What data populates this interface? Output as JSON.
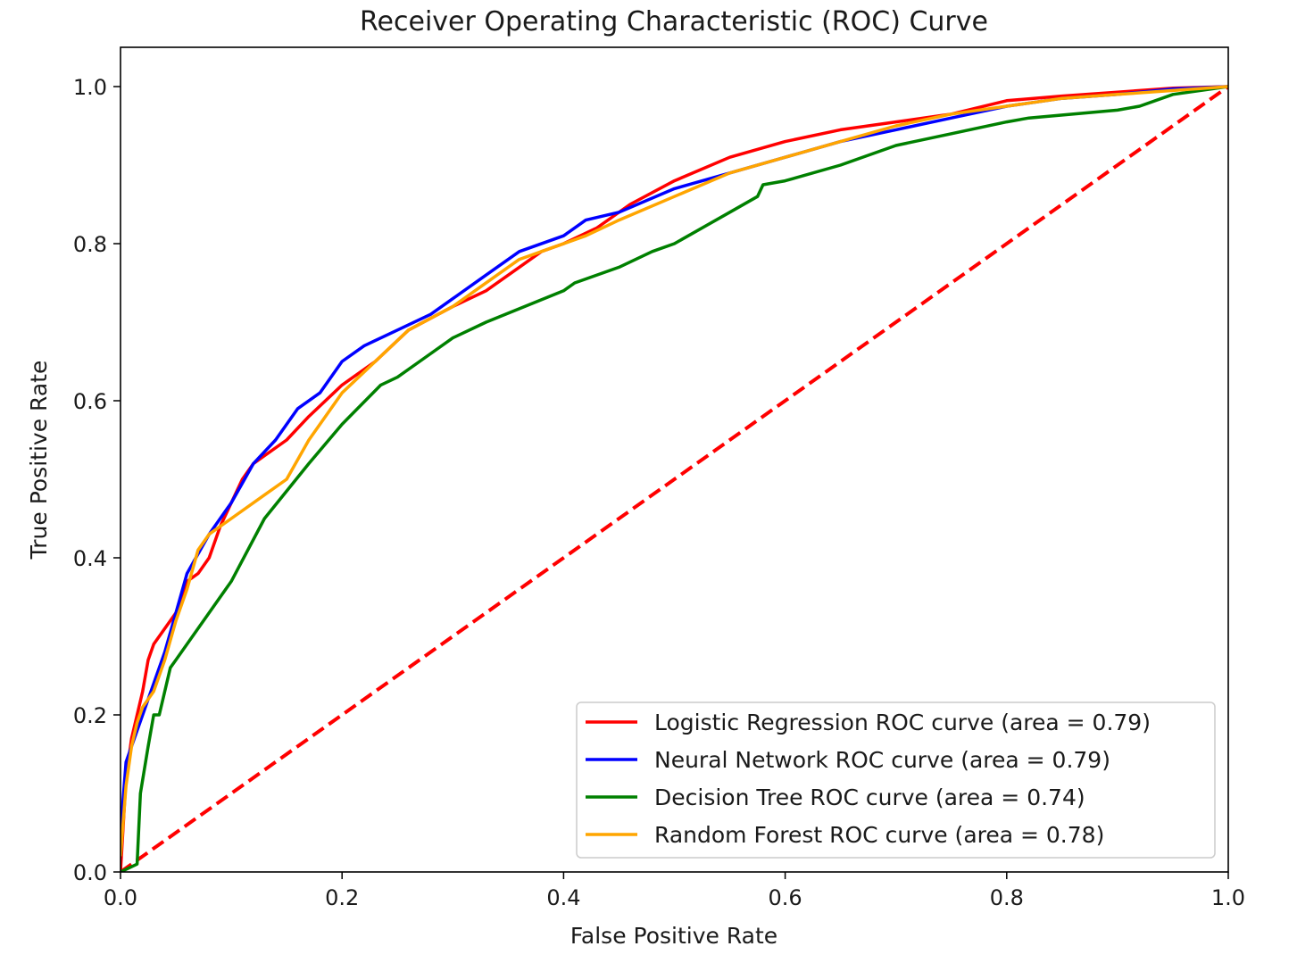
{
  "chart_data": {
    "type": "line",
    "title": "Receiver Operating Characteristic (ROC) Curve",
    "xlabel": "False Positive Rate",
    "ylabel": "True Positive Rate",
    "xlim": [
      0.0,
      1.0
    ],
    "ylim": [
      0.0,
      1.05
    ],
    "xticks": [
      0.0,
      0.2,
      0.4,
      0.6,
      0.8,
      1.0
    ],
    "yticks": [
      0.0,
      0.2,
      0.4,
      0.6,
      0.8,
      1.0
    ],
    "xtick_labels": [
      "0.0",
      "0.2",
      "0.4",
      "0.6",
      "0.8",
      "1.0"
    ],
    "ytick_labels": [
      "0.0",
      "0.2",
      "0.4",
      "0.6",
      "0.8",
      "1.0"
    ],
    "grid": false,
    "legend_position": "lower right",
    "series": [
      {
        "name": "Logistic Regression ROC curve (area = 0.79)",
        "color": "#ff0000",
        "x": [
          0.0,
          0.005,
          0.01,
          0.02,
          0.025,
          0.03,
          0.04,
          0.05,
          0.06,
          0.07,
          0.08,
          0.09,
          0.1,
          0.11,
          0.12,
          0.13,
          0.15,
          0.17,
          0.2,
          0.23,
          0.26,
          0.3,
          0.33,
          0.36,
          0.38,
          0.4,
          0.43,
          0.46,
          0.5,
          0.55,
          0.6,
          0.65,
          0.7,
          0.75,
          0.8,
          0.85,
          0.9,
          0.95,
          1.0
        ],
        "y": [
          0.0,
          0.12,
          0.17,
          0.23,
          0.27,
          0.29,
          0.31,
          0.33,
          0.37,
          0.38,
          0.4,
          0.44,
          0.47,
          0.5,
          0.52,
          0.53,
          0.55,
          0.58,
          0.62,
          0.65,
          0.69,
          0.72,
          0.74,
          0.77,
          0.79,
          0.8,
          0.82,
          0.85,
          0.88,
          0.91,
          0.93,
          0.945,
          0.955,
          0.965,
          0.982,
          0.988,
          0.993,
          0.998,
          1.0
        ]
      },
      {
        "name": "Neural Network ROC curve (area = 0.79)",
        "color": "#0000ff",
        "x": [
          0.0,
          0.005,
          0.01,
          0.02,
          0.03,
          0.04,
          0.05,
          0.06,
          0.08,
          0.1,
          0.12,
          0.14,
          0.16,
          0.18,
          0.2,
          0.22,
          0.25,
          0.28,
          0.3,
          0.33,
          0.36,
          0.4,
          0.42,
          0.45,
          0.5,
          0.55,
          0.6,
          0.65,
          0.7,
          0.75,
          0.8,
          0.85,
          0.9,
          0.95,
          1.0
        ],
        "y": [
          0.05,
          0.14,
          0.16,
          0.2,
          0.24,
          0.28,
          0.33,
          0.38,
          0.43,
          0.47,
          0.52,
          0.55,
          0.59,
          0.61,
          0.65,
          0.67,
          0.69,
          0.71,
          0.73,
          0.76,
          0.79,
          0.81,
          0.83,
          0.84,
          0.87,
          0.89,
          0.91,
          0.93,
          0.945,
          0.96,
          0.975,
          0.985,
          0.99,
          0.997,
          1.0
        ]
      },
      {
        "name": "Decision Tree ROC curve (area = 0.74)",
        "color": "#008000",
        "x": [
          0.0,
          0.015,
          0.018,
          0.025,
          0.03,
          0.035,
          0.04,
          0.045,
          0.05,
          0.1,
          0.13,
          0.17,
          0.2,
          0.235,
          0.25,
          0.27,
          0.3,
          0.33,
          0.4,
          0.41,
          0.45,
          0.48,
          0.5,
          0.55,
          0.575,
          0.58,
          0.6,
          0.65,
          0.7,
          0.75,
          0.8,
          0.82,
          0.9,
          0.92,
          0.95,
          1.0
        ],
        "y": [
          0.0,
          0.01,
          0.1,
          0.16,
          0.2,
          0.2,
          0.23,
          0.26,
          0.27,
          0.37,
          0.45,
          0.52,
          0.57,
          0.62,
          0.63,
          0.65,
          0.68,
          0.7,
          0.74,
          0.75,
          0.77,
          0.79,
          0.8,
          0.84,
          0.86,
          0.875,
          0.88,
          0.9,
          0.925,
          0.94,
          0.955,
          0.96,
          0.97,
          0.975,
          0.99,
          1.0
        ]
      },
      {
        "name": "Random Forest ROC curve (area = 0.78)",
        "color": "#ffa500",
        "x": [
          0.0,
          0.005,
          0.01,
          0.015,
          0.02,
          0.03,
          0.04,
          0.05,
          0.06,
          0.07,
          0.08,
          0.1,
          0.13,
          0.15,
          0.17,
          0.2,
          0.23,
          0.26,
          0.3,
          0.34,
          0.36,
          0.38,
          0.42,
          0.45,
          0.5,
          0.55,
          0.6,
          0.65,
          0.7,
          0.75,
          0.8,
          0.85,
          0.9,
          0.95,
          1.0
        ],
        "y": [
          0.02,
          0.11,
          0.16,
          0.19,
          0.21,
          0.23,
          0.27,
          0.32,
          0.36,
          0.41,
          0.43,
          0.45,
          0.48,
          0.5,
          0.55,
          0.61,
          0.65,
          0.69,
          0.72,
          0.76,
          0.78,
          0.79,
          0.81,
          0.83,
          0.86,
          0.89,
          0.91,
          0.93,
          0.95,
          0.965,
          0.975,
          0.985,
          0.99,
          0.995,
          1.0
        ]
      },
      {
        "name": "",
        "color": "#ff0000",
        "style": "dashed",
        "x": [
          0.0,
          1.0
        ],
        "y": [
          0.0,
          1.0
        ]
      }
    ]
  }
}
